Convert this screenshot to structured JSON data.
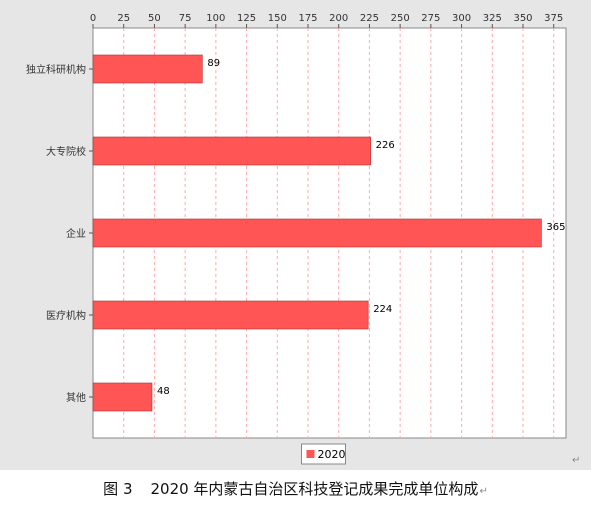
{
  "caption": {
    "prefix": "图 3",
    "text": "2020 年内蒙古自治区科技登记成果完成单位构成"
  },
  "paragraph_mark": "↵",
  "colors": {
    "bar": "#ff5555",
    "bar_border": "#b03030",
    "plot_background": "#ffffff",
    "outer_background": "#e6e6e6",
    "grid": "#ffaaaa"
  },
  "chart_data": {
    "type": "bar",
    "orientation": "horizontal",
    "categories": [
      "独立科研机构",
      "大专院校",
      "企业",
      "医疗机构",
      "其他"
    ],
    "series": [
      {
        "name": "2020",
        "values": [
          89,
          226,
          365,
          224,
          48
        ]
      }
    ],
    "xlim": [
      0,
      385
    ],
    "x_ticks": [
      0,
      25,
      50,
      75,
      100,
      125,
      150,
      175,
      200,
      225,
      250,
      275,
      300,
      325,
      350,
      375
    ],
    "x_axis_position": "top",
    "grid": "vertical dashed",
    "legend": "bottom-center",
    "data_labels": true
  }
}
